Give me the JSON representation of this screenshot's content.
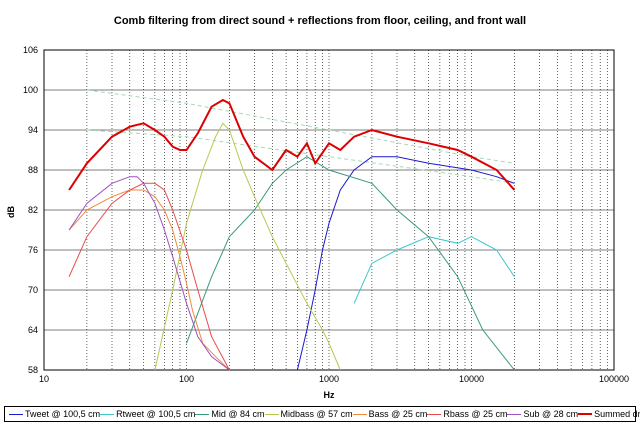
{
  "chart_data": {
    "type": "line",
    "title": "Comb filtering from direct sound + reflections from floor, ceiling, and front wall",
    "xlabel": "Hz",
    "ylabel": "dB",
    "xscale": "log",
    "xlim": [
      10,
      100000
    ],
    "ylim": [
      58,
      106
    ],
    "yticks": [
      58,
      64,
      70,
      76,
      82,
      88,
      94,
      100,
      106
    ],
    "xticks": [
      10,
      100,
      1000,
      10000,
      100000
    ],
    "xtick_labels": [
      "10",
      "100",
      "1000",
      "10000",
      "100000"
    ],
    "grid": "vertical dotted lines at each decade subdivision, horizontal solid lines at each y tick",
    "legend_position": "bottom",
    "series": [
      {
        "name": "Tweet @ 100,5 cm",
        "color": "#1a1ad0",
        "x": [
          600,
          700,
          800,
          900,
          1000,
          1200,
          1500,
          2000,
          3000,
          5000,
          10000,
          15000,
          20000
        ],
        "y": [
          58,
          64,
          70,
          76,
          80,
          85,
          88,
          90,
          90,
          89,
          88,
          87,
          86
        ]
      },
      {
        "name": "Rtweet @ 100,5 cm",
        "color": "#40c8c8",
        "x": [
          1500,
          2000,
          3000,
          5000,
          8000,
          10000,
          15000,
          20000
        ],
        "y": [
          68,
          74,
          76,
          78,
          77,
          78,
          76,
          72
        ]
      },
      {
        "name": "Mid @ 84 cm",
        "color": "#3a9a78",
        "x": [
          100,
          150,
          200,
          300,
          400,
          500,
          700,
          1000,
          2000,
          3000,
          5000,
          8000,
          12000,
          20000
        ],
        "y": [
          62,
          72,
          78,
          82,
          86,
          88,
          90,
          88,
          86,
          82,
          78,
          72,
          64,
          58
        ]
      },
      {
        "name": "Midbass @ 57 cm",
        "color": "#b8c850",
        "x": [
          60,
          80,
          100,
          130,
          160,
          180,
          200,
          250,
          300,
          400,
          500,
          700,
          900,
          1000,
          1200
        ],
        "y": [
          58,
          70,
          80,
          88,
          93,
          95,
          94,
          88,
          84,
          78,
          74,
          68,
          64,
          62,
          58
        ]
      },
      {
        "name": "Bass @ 25 cm",
        "color": "#f08a3c",
        "x": [
          15,
          20,
          30,
          40,
          50,
          60,
          70,
          80,
          90,
          100,
          110,
          130,
          160,
          200
        ],
        "y": [
          79,
          82,
          84,
          85,
          85,
          84,
          82,
          79,
          75,
          71,
          67,
          62,
          60,
          58
        ]
      },
      {
        "name": "Rbass @ 25 cm",
        "color": "#e84c4c",
        "x": [
          15,
          20,
          30,
          40,
          50,
          60,
          70,
          80,
          100,
          120,
          150,
          200
        ],
        "y": [
          72,
          78,
          83,
          85,
          86,
          86,
          85,
          82,
          76,
          70,
          63,
          58
        ]
      },
      {
        "name": "Sub @ 28 cm",
        "color": "#a050c0",
        "x": [
          15,
          20,
          30,
          40,
          45,
          50,
          60,
          70,
          80,
          100,
          120,
          150,
          200
        ],
        "y": [
          79,
          83,
          86,
          87,
          87,
          86,
          83,
          79,
          75,
          68,
          63,
          60,
          58
        ]
      },
      {
        "name": "Summed drivers",
        "color": "#dd0000",
        "x": [
          15,
          20,
          30,
          40,
          50,
          60,
          70,
          80,
          90,
          100,
          120,
          150,
          180,
          200,
          250,
          300,
          400,
          500,
          600,
          700,
          800,
          1000,
          1200,
          1500,
          2000,
          3000,
          5000,
          8000,
          10000,
          15000,
          20000
        ],
        "y": [
          85,
          89,
          93,
          94.5,
          95,
          94,
          93,
          91.5,
          91,
          91,
          93.5,
          97.5,
          98.5,
          98,
          93,
          90,
          88,
          91,
          90,
          92,
          89,
          92,
          91,
          93,
          94,
          93,
          92,
          91,
          90,
          88,
          85
        ]
      }
    ],
    "reference_lines": [
      {
        "color": "#a8d8b0",
        "style": "dashed",
        "x": [
          20,
          100,
          1000,
          10000,
          20000
        ],
        "y": [
          100,
          98,
          94,
          90,
          89
        ]
      },
      {
        "color": "#a8d8b0",
        "style": "dashed",
        "x": [
          20,
          100,
          1000,
          10000,
          20000
        ],
        "y": [
          94,
          93,
          90,
          87,
          86
        ]
      }
    ]
  }
}
